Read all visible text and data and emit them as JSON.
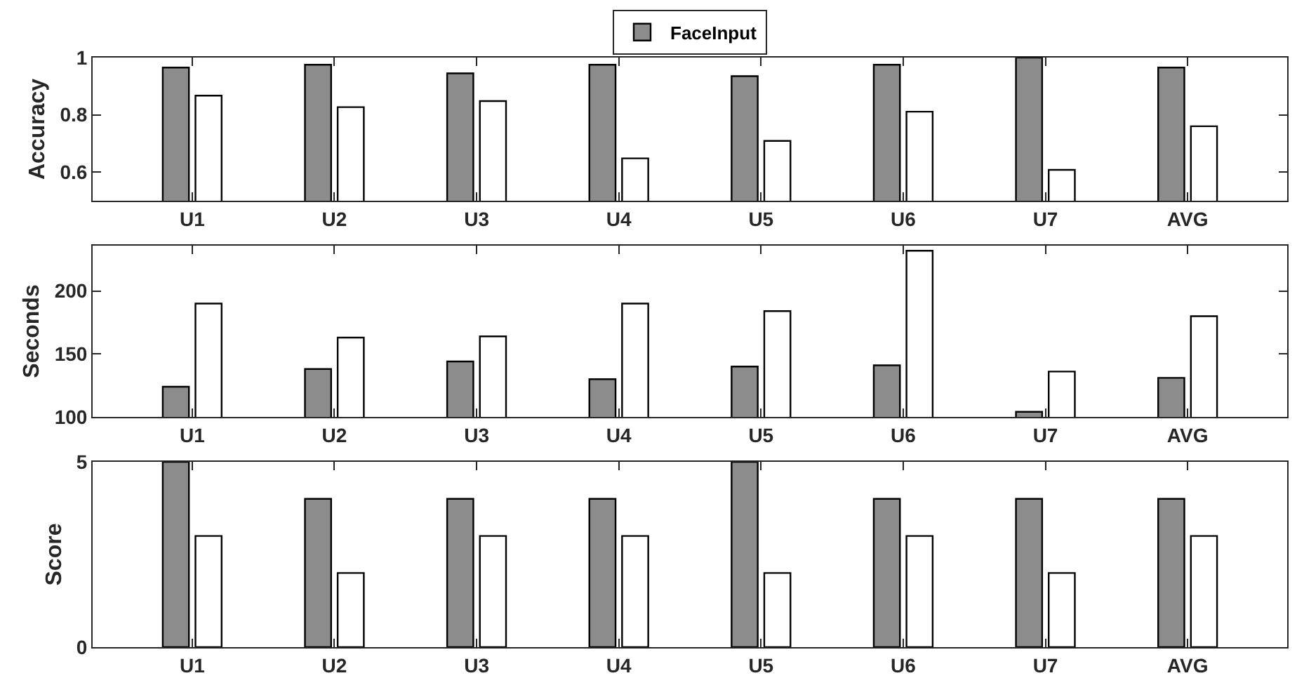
{
  "chart_data": [
    {
      "type": "bar",
      "ylabel": "Accuracy",
      "categories": [
        "U1",
        "U2",
        "U3",
        "U4",
        "U5",
        "U6",
        "U7",
        "AVG"
      ],
      "ylim": [
        0.5,
        1
      ],
      "yticks": [
        {
          "value": 0.6,
          "label": "0.6"
        },
        {
          "value": 0.8,
          "label": "0.8"
        },
        {
          "value": 1,
          "label": "1"
        }
      ],
      "grid": false,
      "legend": "top",
      "series": [
        {
          "name": "FaceInput",
          "color": "#8c8c8c",
          "values": [
            0.965,
            0.975,
            0.945,
            0.975,
            0.935,
            0.975,
            1.0,
            0.965
          ]
        },
        {
          "color": "#ffffff",
          "values": [
            0.867,
            0.827,
            0.848,
            0.648,
            0.709,
            0.811,
            0.608,
            0.76
          ]
        }
      ]
    },
    {
      "type": "bar",
      "ylabel": "Seconds",
      "categories": [
        "U1",
        "U2",
        "U3",
        "U4",
        "U5",
        "U6",
        "U7",
        "AVG"
      ],
      "ylim": [
        100,
        236
      ],
      "yticks": [
        100,
        150,
        200
      ],
      "grid": false,
      "legend": false,
      "series": [
        {
          "color": "#8c8c8c",
          "values": [
            124,
            138,
            144,
            130,
            140,
            141,
            104,
            131
          ]
        },
        {
          "color": "#ffffff",
          "values": [
            190,
            163,
            164,
            190,
            184,
            232,
            136,
            180
          ]
        }
      ]
    },
    {
      "type": "bar",
      "ylabel": "Score",
      "categories": [
        "U1",
        "U2",
        "U3",
        "U4",
        "U5",
        "U6",
        "U7",
        "AVG"
      ],
      "ylim": [
        0,
        5
      ],
      "yticks": [
        0,
        5
      ],
      "grid": false,
      "legend": false,
      "series": [
        {
          "color": "#8c8c8c",
          "values": [
            5,
            4,
            4,
            4,
            5,
            4,
            4,
            4
          ]
        },
        {
          "color": "#ffffff",
          "values": [
            3,
            2,
            3,
            3,
            2,
            3,
            2,
            3
          ]
        }
      ]
    }
  ]
}
